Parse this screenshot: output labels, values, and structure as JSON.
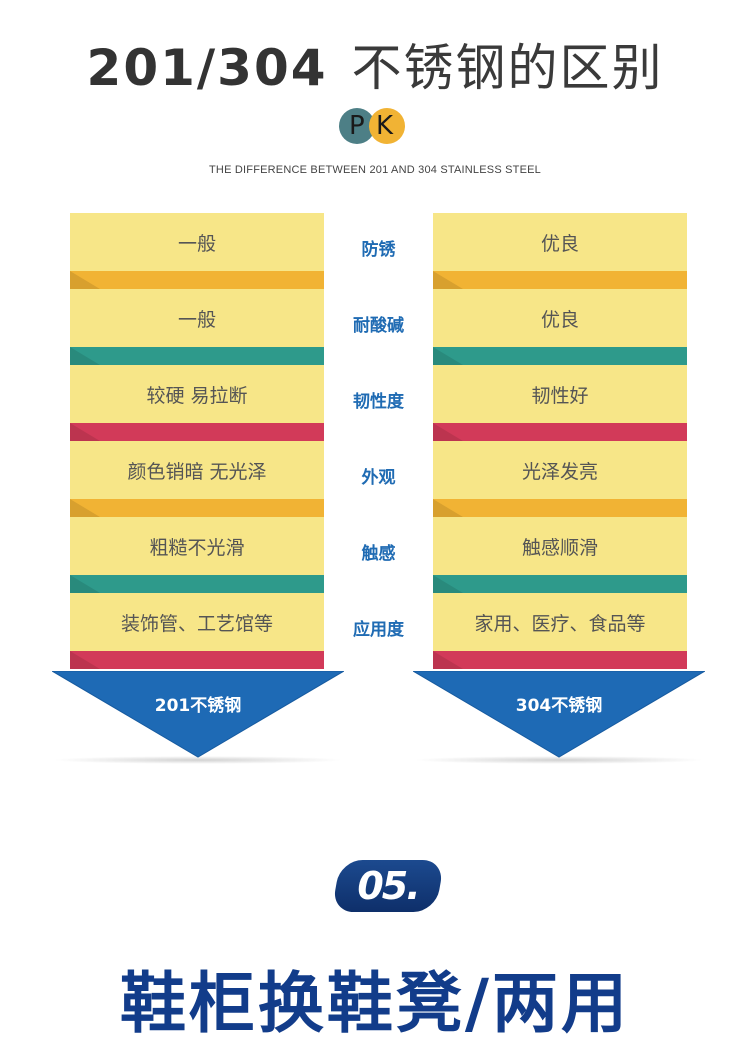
{
  "header": {
    "title_num": "201/304",
    "title_text": "不锈钢的区别",
    "pk_p": "P",
    "pk_k": "K",
    "subtitle": "THE DIFFERENCE BETWEEN 201 AND 304 STAINLESS STEEL"
  },
  "rows": [
    {
      "left": "一般",
      "label": "防锈",
      "right": "优良",
      "fold_color": "#f1b334"
    },
    {
      "left": "一般",
      "label": "耐酸碱",
      "right": "优良",
      "fold_color": "#2e9a8b"
    },
    {
      "left": "较硬  易拉断",
      "label": "韧性度",
      "right": "韧性好",
      "fold_color": "#d23a59"
    },
    {
      "left": "颜色销暗  无光泽",
      "label": "外观",
      "right": "光泽发亮",
      "fold_color": "#f1b334"
    },
    {
      "left": "粗糙不光滑",
      "label": "触感",
      "right": "触感顺滑",
      "fold_color": "#2e9a8b"
    },
    {
      "left": "装饰管、工艺馆等",
      "label": "应用度",
      "right": "家用、医疗、食品等",
      "fold_color": "#d23a59"
    }
  ],
  "arrows": {
    "left_label": "201不锈钢",
    "right_label": "304不锈钢",
    "color": "#1e6ab5"
  },
  "badge": "05.",
  "footer": "鞋柜换鞋凳/两用"
}
